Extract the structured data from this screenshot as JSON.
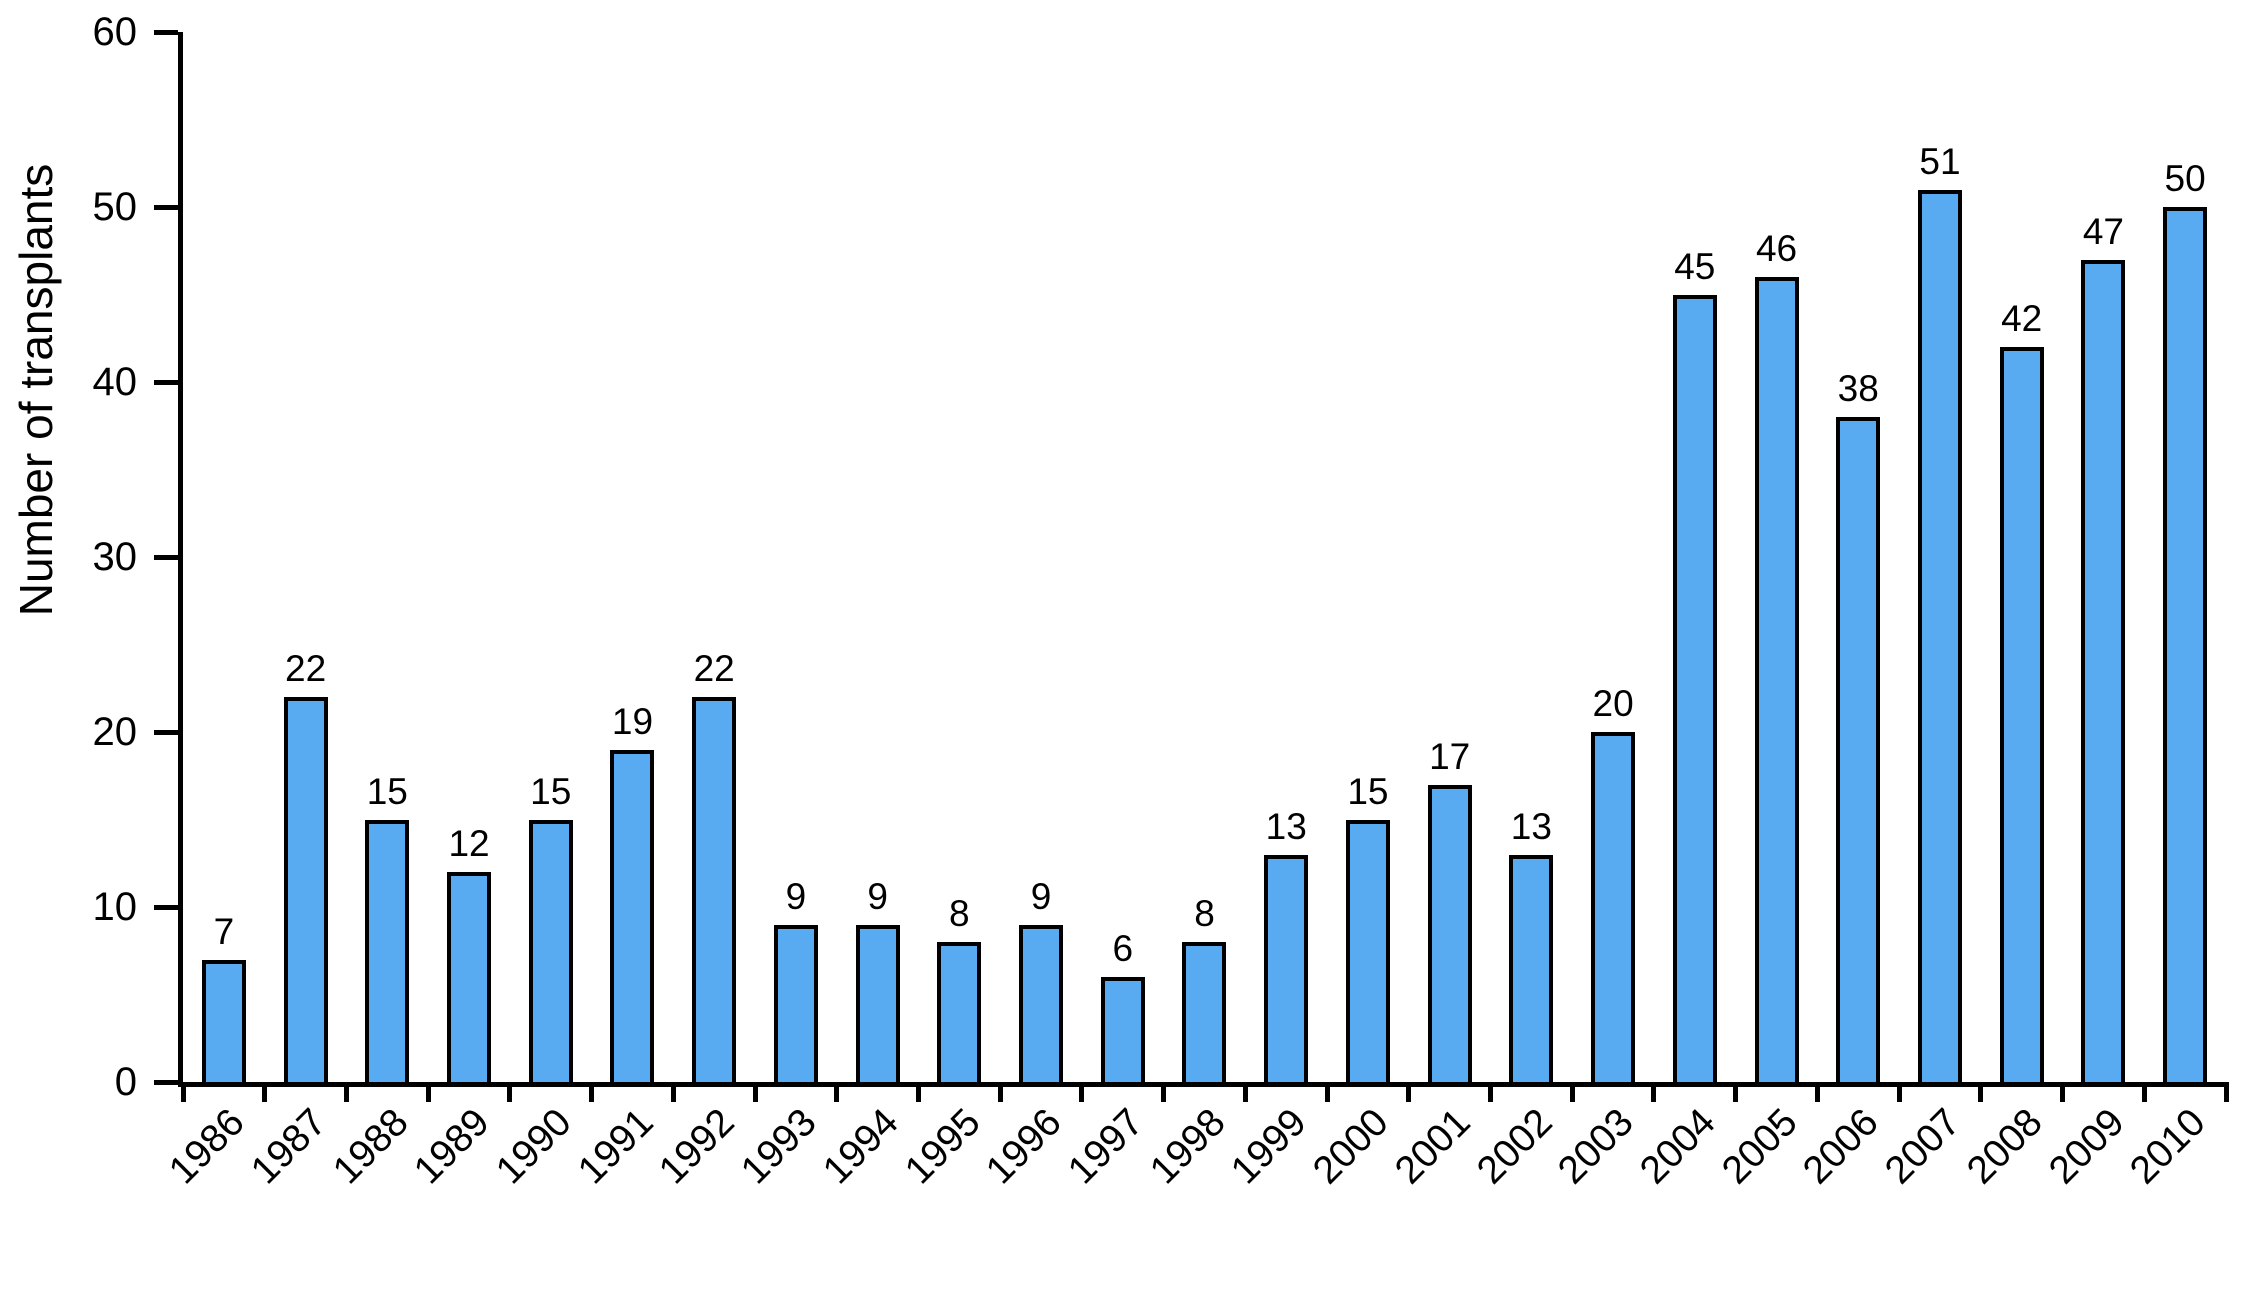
{
  "chart_data": {
    "type": "bar",
    "title": "",
    "xlabel": "",
    "ylabel": "Number of transplants",
    "categories": [
      "1986",
      "1987",
      "1988",
      "1989",
      "1990",
      "1991",
      "1992",
      "1993",
      "1994",
      "1995",
      "1996",
      "1997",
      "1998",
      "1999",
      "2000",
      "2001",
      "2002",
      "2003",
      "2004",
      "2005",
      "2006",
      "2007",
      "2008",
      "2009",
      "2010"
    ],
    "values": [
      7,
      22,
      15,
      12,
      15,
      19,
      22,
      9,
      9,
      8,
      9,
      6,
      8,
      13,
      15,
      17,
      13,
      20,
      45,
      46,
      38,
      51,
      42,
      47,
      50
    ],
    "value_labels_shown": true,
    "ylim": [
      0,
      60
    ],
    "yticks": [
      0,
      10,
      20,
      30,
      40,
      50,
      60
    ],
    "grid": false,
    "legend": null,
    "bar_color": "#58abf0",
    "bar_border_color": "#000000",
    "background_color": "#ffffff",
    "x_tick_label_rotation_deg": 45
  }
}
